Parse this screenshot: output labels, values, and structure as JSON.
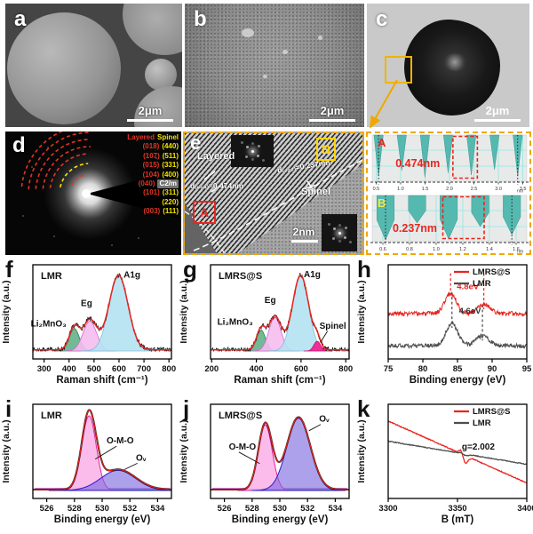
{
  "figure": {
    "letters": {
      "a": "a",
      "b": "b",
      "c": "c",
      "d": "d",
      "e": "e",
      "f": "f",
      "g": "g",
      "h": "h",
      "i": "i",
      "j": "j",
      "k": "k"
    },
    "scalebars": {
      "a": "2μm",
      "b": "2μm",
      "c": "2μm",
      "e": "2nm"
    },
    "saed": {
      "header": {
        "layered": "Layered",
        "spinel": "Spinel"
      },
      "rows": [
        {
          "layered": "(018)",
          "spinel": "(440)",
          "chip": false
        },
        {
          "layered": "(107)",
          "spinel": "(511)",
          "chip": false
        },
        {
          "layered": "(015)",
          "spinel": "(331)",
          "chip": false
        },
        {
          "layered": "(104)",
          "spinel": "(400)",
          "chip": false
        },
        {
          "layered": "(040)",
          "spinel": "C2/m",
          "chip": true
        },
        {
          "layered": "(101)",
          "spinel": "(311)",
          "chip": false
        },
        {
          "layered": "",
          "spinel": "(220)",
          "chip": false
        },
        {
          "layered": "(003)",
          "spinel": "(111)",
          "chip": false
        }
      ]
    },
    "hrtem": {
      "layered_label": "Layered",
      "spinel_label": "Spinel",
      "d_layered": "d₍₀₀₃₎=0.474nm",
      "d_spinel": "d₍₂₂₂₎=0.237nm",
      "box_a": "A",
      "box_b": "B"
    }
  },
  "colors": {
    "red": "#e8251f",
    "teal": "#55b9b0",
    "yellow": "#ffd400",
    "border_orange": "#f0a800"
  },
  "chart_data": [
    {
      "host": "chart-f",
      "type": "raman",
      "panel": "f",
      "name": "LMR",
      "seed": 7,
      "xlabel": "Raman shift (cm⁻¹)",
      "ylabel": "Intensity (a.u.)",
      "xlim": [
        255,
        810
      ],
      "xticks": [
        300,
        400,
        500,
        600,
        700,
        800
      ],
      "noise": 0.035,
      "envelope_color": "#e8251f",
      "trace_color": "#111111",
      "peaks": [
        {
          "label": "Li₂MnO₃",
          "center": 421,
          "sigma": 20,
          "amp": 0.3,
          "fill": "#63b189",
          "fill_opacity": 0.9,
          "stroke": "#2e7d5a"
        },
        {
          "label": "Eg",
          "center": 483,
          "sigma": 27,
          "amp": 0.4,
          "fill": "#f6bdf0",
          "fill_opacity": 0.9,
          "stroke": "#cb6ec4"
        },
        {
          "label": "A1g",
          "center": 598,
          "sigma": 38,
          "amp": 1.0,
          "fill": "#b5e2f2",
          "fill_opacity": 0.9,
          "stroke": "#85bcd8"
        }
      ],
      "annotations": [
        {
          "text": "Li₂MnO₃",
          "x": 318,
          "y": 0.33
        },
        {
          "text": "Eg",
          "x": 470,
          "y": 0.6
        },
        {
          "text": "A1g",
          "x": 652,
          "y": 0.98
        }
      ]
    },
    {
      "host": "chart-g",
      "type": "raman",
      "panel": "g",
      "name": "LMRS@S",
      "seed": 11,
      "xlabel": "Raman shift (cm⁻¹)",
      "ylabel": "Intensity (a.u.)",
      "xlim": [
        195,
        815
      ],
      "xticks": [
        200,
        400,
        600,
        800
      ],
      "noise": 0.035,
      "envelope_color": "#e8251f",
      "trace_color": "#111111",
      "peaks": [
        {
          "label": "Li₂MnO₃",
          "center": 421,
          "sigma": 20,
          "amp": 0.28,
          "fill": "#63b189",
          "fill_opacity": 0.9,
          "stroke": "#2e7d5a"
        },
        {
          "label": "Eg",
          "center": 483,
          "sigma": 27,
          "amp": 0.45,
          "fill": "#f6bdf0",
          "fill_opacity": 0.9,
          "stroke": "#cb6ec4"
        },
        {
          "label": "A1g",
          "center": 598,
          "sigma": 36,
          "amp": 1.0,
          "fill": "#b5e2f2",
          "fill_opacity": 0.9,
          "stroke": "#85bcd8"
        },
        {
          "label": "Spinel",
          "center": 672,
          "sigma": 15,
          "amp": 0.13,
          "fill": "#ee2f95",
          "fill_opacity": 1,
          "stroke": "#c70f74"
        }
      ],
      "annotations": [
        {
          "text": "Li₂MnO₃",
          "x": 305,
          "y": 0.35
        },
        {
          "text": "Eg",
          "x": 462,
          "y": 0.64
        },
        {
          "text": "A1g",
          "x": 650,
          "y": 0.99
        },
        {
          "text": "Spinel",
          "x": 742,
          "y": 0.3,
          "arrow_to": [
            690,
            0.13
          ]
        }
      ]
    },
    {
      "host": "chart-h",
      "type": "xps",
      "panel": "h",
      "seed": 3,
      "xlabel": "Binding energy (eV)",
      "ylabel": "Intensity (a.u.)",
      "xlim": [
        75,
        95
      ],
      "xticks": [
        75,
        80,
        85,
        90,
        95
      ],
      "series": [
        {
          "name": "LMRS@S",
          "color": "#e8251f",
          "offset": 0.5,
          "noise": 0.03,
          "peaks": [
            {
              "center": 84.0,
              "sigma": 0.85,
              "amp": 0.27
            },
            {
              "center": 88.8,
              "sigma": 0.9,
              "amp": 0.12
            }
          ],
          "dash": [
            84.0,
            88.8
          ]
        },
        {
          "name": "LMR",
          "color": "#4d4d4d",
          "offset": 0.07,
          "noise": 0.028,
          "peaks": [
            {
              "center": 84.2,
              "sigma": 0.85,
              "amp": 0.3
            },
            {
              "center": 88.6,
              "sigma": 0.95,
              "amp": 0.13
            }
          ],
          "dash": [
            84.2,
            88.6
          ]
        }
      ],
      "annotations": [
        {
          "text": "4.8eV",
          "x": 86.5,
          "y": 0.83,
          "color": "#e8251f"
        },
        {
          "text": "4.6eV",
          "x": 86.8,
          "y": 0.5,
          "color": "#333333"
        }
      ],
      "legend": [
        "LMRS@S",
        "LMR"
      ]
    },
    {
      "host": "chart-i",
      "type": "o1s",
      "panel": "i",
      "name": "LMR",
      "xlabel": "Binding energy (eV)",
      "ylabel": "Intensity (a.u.)",
      "xlim": [
        525,
        535
      ],
      "xticks": [
        526,
        528,
        530,
        532,
        534
      ],
      "envelope_color": "#e8251f",
      "peaks": [
        {
          "label": "O-M-O",
          "center": 529.05,
          "sigma": 0.52,
          "amp": 1.0,
          "fill": "#fbb6ea",
          "fill_opacity": 0.92,
          "stroke": "#e6239b"
        },
        {
          "label": "Oᵥ",
          "center": 531.15,
          "sigma": 1.25,
          "amp": 0.27,
          "fill": "#7a68e0",
          "fill_opacity": 0.62,
          "stroke": "#2d1bc4"
        }
      ],
      "annotations": [
        {
          "text": "O-M-O",
          "x": 531.3,
          "y": 0.63,
          "arrow_to": [
            529.5,
            0.42
          ]
        },
        {
          "text": "Oᵥ",
          "x": 532.8,
          "y": 0.4,
          "arrow_to": [
            531.6,
            0.28
          ]
        }
      ]
    },
    {
      "host": "chart-j",
      "type": "o1s",
      "panel": "j",
      "name": "LMRS@S",
      "xlabel": "Binding energy (eV)",
      "ylabel": "Intensity (a.u.)",
      "xlim": [
        525,
        535
      ],
      "xticks": [
        526,
        528,
        530,
        532,
        534
      ],
      "envelope_color": "#e8251f",
      "peaks": [
        {
          "label": "O-M-O",
          "center": 528.95,
          "sigma": 0.5,
          "amp": 0.88,
          "fill": "#fbb6ea",
          "fill_opacity": 0.92,
          "stroke": "#e6239b"
        },
        {
          "label": "Oᵥ",
          "center": 531.35,
          "sigma": 0.85,
          "amp": 0.97,
          "fill": "#7a68e0",
          "fill_opacity": 0.62,
          "stroke": "#2d1bc4"
        }
      ],
      "annotations": [
        {
          "text": "O-M-O",
          "x": 527.3,
          "y": 0.55,
          "arrow_to": [
            528.55,
            0.36
          ]
        },
        {
          "text": "Oᵥ",
          "x": 533.2,
          "y": 0.92,
          "arrow_to": [
            532.1,
            0.8
          ]
        }
      ]
    },
    {
      "host": "chart-k",
      "type": "epr",
      "panel": "k",
      "seed": 5,
      "xlabel": "B (mT)",
      "ylabel": "Intensity (a.u.)",
      "xlim": [
        3300,
        3400
      ],
      "xticks": [
        3300,
        3350,
        3400
      ],
      "series": [
        {
          "name": "LMRS@S",
          "color": "#e8251f",
          "start": 0.93,
          "end": 0.1,
          "up": 0.05,
          "down": 0.1,
          "fx": 3354,
          "noise": 0.006
        },
        {
          "name": "LMR",
          "color": "#4d4d4d",
          "start": 0.66,
          "end": 0.35,
          "up": 0.012,
          "down": 0.02,
          "fx": 3354,
          "noise": 0.005
        }
      ],
      "annotation": {
        "text": "g=2.002",
        "x": 3365,
        "y": 0.55
      },
      "legend": [
        "LMRS@S",
        "LMR"
      ]
    },
    {
      "host": "profile-A",
      "type": "profile",
      "label": "A",
      "label_color": "#e8251f",
      "annotation": "0.474nm",
      "ann_x": 1.35,
      "ann_y": 0.72,
      "xlim": [
        0.42,
        3.58
      ],
      "ticks": [
        0.5,
        1.0,
        1.5,
        2.0,
        2.5,
        3.0,
        3.5
      ],
      "unit": "nm",
      "spike_start": 0.55,
      "spike_period": 0.474,
      "spike_count": 7,
      "spike_depths": [
        0.93,
        0.8,
        0.95,
        0.85,
        0.9,
        0.78,
        0.93
      ],
      "spike_top_w": 0.4,
      "style": "triangle",
      "box": [
        2.07,
        2.57
      ]
    },
    {
      "host": "profile-B",
      "type": "profile",
      "label": "B",
      "label_color": "#f5e642",
      "annotation": "0.237nm",
      "ann_x": 0.84,
      "ann_y": 0.82,
      "xlim": [
        0.52,
        1.68
      ],
      "ticks": [
        0.6,
        0.8,
        1.0,
        1.2,
        1.4,
        1.6
      ],
      "unit": "nm",
      "spike_start": 0.62,
      "spike_period": 0.237,
      "spike_count": 5,
      "spike_depths": [
        1.0,
        0.62,
        0.98,
        0.7,
        0.88
      ],
      "spike_top_w": 0.55,
      "style": "block",
      "box": [
        1.05,
        1.36
      ]
    }
  ]
}
